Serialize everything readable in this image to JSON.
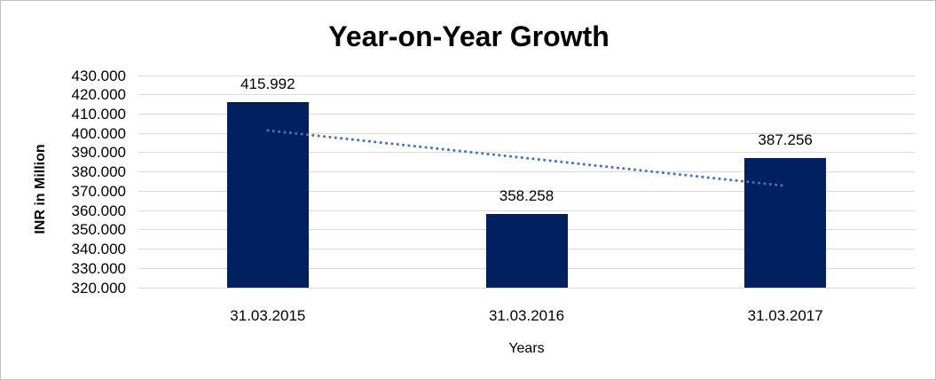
{
  "frame": {
    "background": "#ffffff",
    "border_color": "#bfbfbf"
  },
  "chart_data": {
    "type": "bar",
    "title": "Year-on-Year Growth",
    "xlabel": "Years",
    "ylabel": "INR in Million",
    "categories": [
      "31.03.2015",
      "31.03.2016",
      "31.03.2017"
    ],
    "values": [
      415.992,
      358.258,
      387.256
    ],
    "value_labels": [
      "415.992",
      "358.258",
      "387.256"
    ],
    "ylim": [
      320,
      430
    ],
    "ytick_step": 10,
    "ytick_labels": [
      "430.000",
      "420.000",
      "410.000",
      "400.000",
      "390.000",
      "380.000",
      "370.000",
      "360.000",
      "350.000",
      "340.000",
      "330.000",
      "320.000"
    ],
    "grid": true,
    "legend": false,
    "bar_color": "#002060",
    "gridline_color": "#d9d9d9",
    "label_color": "#000000",
    "trendline": {
      "style": "dotted",
      "color": "#4472c4",
      "start_value": 401.5,
      "end_value": 372.8
    }
  }
}
